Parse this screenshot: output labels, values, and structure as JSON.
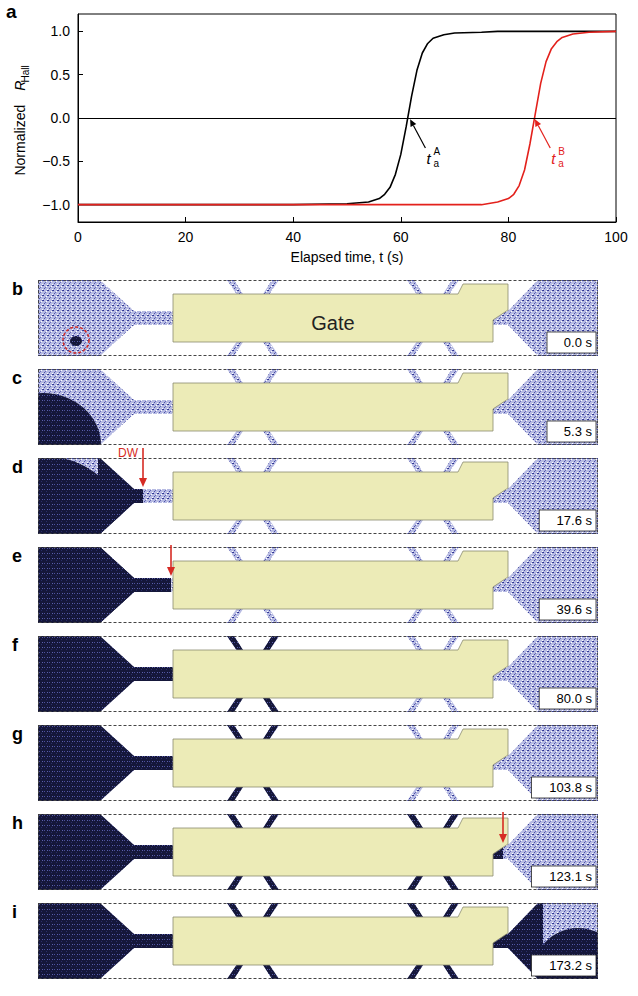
{
  "chart_data": {
    "type": "line",
    "panel_label": "a",
    "xlabel": "Elapsed time, t (s)",
    "ylabel": {
      "text": "Normalized",
      "symbol": "R",
      "subscript": "Hall"
    },
    "x": [
      0,
      10,
      20,
      30,
      40,
      50,
      54,
      56,
      57,
      58,
      59,
      60,
      61,
      62,
      63,
      64,
      65,
      66,
      68,
      70,
      75,
      78,
      80,
      81,
      82,
      83,
      84,
      85,
      86,
      87,
      88,
      89,
      90,
      92,
      95,
      100
    ],
    "series": [
      {
        "color": "#000000",
        "values": [
          -1,
          -1,
          -1,
          -1,
          -1,
          -0.99,
          -0.97,
          -0.93,
          -0.88,
          -0.8,
          -0.65,
          -0.42,
          -0.1,
          0.25,
          0.55,
          0.75,
          0.86,
          0.92,
          0.96,
          0.98,
          0.99,
          1,
          1,
          1,
          1,
          1,
          1,
          1,
          1,
          1,
          1,
          1,
          1,
          1,
          1,
          1
        ]
      },
      {
        "color": "#e3211c",
        "values": [
          -1,
          -1,
          -1,
          -1,
          -1,
          -1,
          -1,
          -1,
          -1,
          -1,
          -1,
          -1,
          -1,
          -1,
          -1,
          -1,
          -1,
          -1,
          -1,
          -1,
          -1,
          -0.97,
          -0.93,
          -0.88,
          -0.78,
          -0.6,
          -0.3,
          0.05,
          0.4,
          0.65,
          0.8,
          0.88,
          0.93,
          0.97,
          0.99,
          1
        ]
      }
    ],
    "xlim": [
      0,
      100
    ],
    "xticks": [
      0,
      20,
      40,
      60,
      80,
      100
    ],
    "ylim": [
      -1.2,
      1.2
    ],
    "yticks": [
      {
        "value": -1,
        "label": "−1.0"
      },
      {
        "value": -0.5,
        "label": "−0.5"
      },
      {
        "value": 0,
        "label": "0.0"
      },
      {
        "value": 0.5,
        "label": "0.5"
      },
      {
        "value": 1,
        "label": "1.0"
      }
    ],
    "grid": false,
    "reference_lines": [
      {
        "y": 0,
        "color": "#000000"
      }
    ],
    "annotations": [
      {
        "base": "t",
        "sub": "a",
        "sup": "A",
        "x": 61.6,
        "y": 0,
        "color": "#000000"
      },
      {
        "base": "t",
        "sub": "a",
        "sup": "B",
        "x": 84.8,
        "y": 0,
        "color": "#e3211c"
      }
    ]
  },
  "image_panels": [
    {
      "label": "b",
      "time": "0.0 s",
      "gate_label": "Gate"
    },
    {
      "label": "c",
      "time": "5.3 s"
    },
    {
      "label": "d",
      "time": "17.6 s",
      "annotation": "DW"
    },
    {
      "label": "e",
      "time": "39.6 s"
    },
    {
      "label": "f",
      "time": "80.0 s"
    },
    {
      "label": "g",
      "time": "103.8 s"
    },
    {
      "label": "h",
      "time": "123.1 s"
    },
    {
      "label": "i",
      "time": "173.2 s"
    }
  ]
}
